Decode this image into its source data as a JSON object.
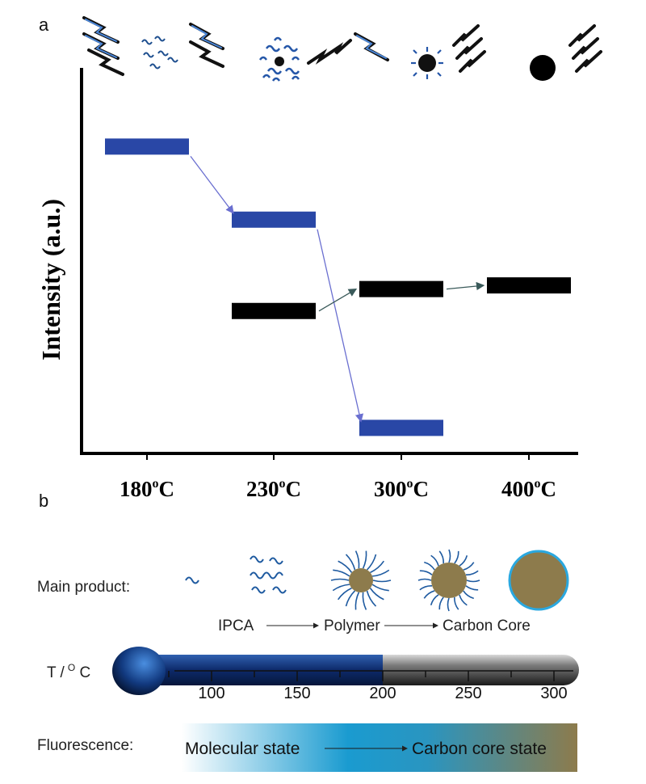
{
  "panel_a": {
    "label": "a",
    "ylabel": "Intensity (a.u.)",
    "x_labels": [
      "180",
      "230",
      "300",
      "400"
    ],
    "x_unit": "°C",
    "blue_levels": [
      0.82,
      0.62,
      0.05
    ],
    "black_levels": [
      0.37,
      0.43,
      0.44
    ],
    "colors": {
      "blue": "#2947a6",
      "black": "#000000",
      "icon_blue": "#4a86d8"
    }
  },
  "panel_b": {
    "label": "b",
    "main_product_label": "Main product:",
    "stages": [
      "IPCA",
      "Polymer",
      "Carbon Core"
    ],
    "temp_label": "T /",
    "temp_sup": "O",
    "temp_unit": " C",
    "temp_ticks": [
      "100",
      "150",
      "200",
      "250",
      "300"
    ],
    "temp_fill_end": 200,
    "fluorescence_label": "Fluorescence:",
    "fluorescence_states": [
      "Molecular state",
      "Carbon core state"
    ],
    "colors": {
      "line": "#1e5aa0",
      "core": "#8d7b4c",
      "gradient_mid": "#1a9bd0",
      "gradient_end": "#8d7b4c"
    }
  }
}
